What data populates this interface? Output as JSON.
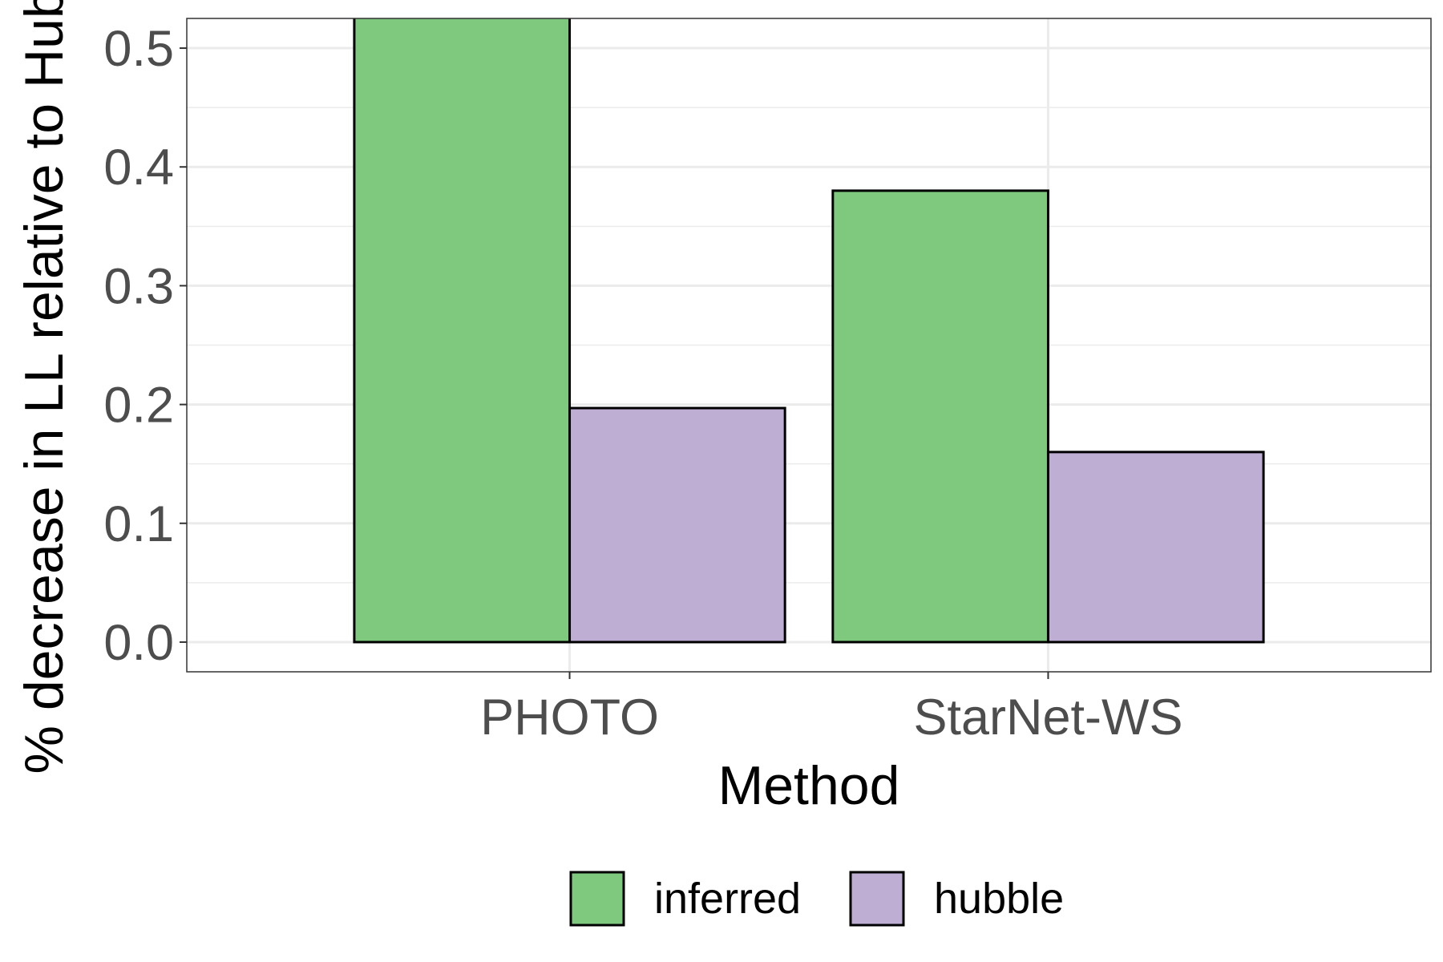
{
  "chart_data": {
    "type": "bar",
    "categories": [
      "PHOTO",
      "StarNet-WS"
    ],
    "series": [
      {
        "name": "inferred",
        "color": "#7fc97f",
        "values": [
          0.53,
          0.38
        ]
      },
      {
        "name": "hubble",
        "color": "#beaed4",
        "values": [
          0.197,
          0.16
        ]
      }
    ],
    "xlabel": "Method",
    "ylabel": "% decrease in LL relative to Hubble",
    "ylim": [
      -0.025,
      0.525
    ],
    "yticks": [
      0.0,
      0.1,
      0.2,
      0.3,
      0.4,
      0.5
    ],
    "ytick_labels": [
      "0.0",
      "0.1",
      "0.2",
      "0.3",
      "0.4",
      "0.5"
    ],
    "grid": true,
    "legend_position": "bottom",
    "bar_edge_color": "#000000",
    "panel_border_color": "#333333",
    "gridline_color": "#ebebeb"
  }
}
